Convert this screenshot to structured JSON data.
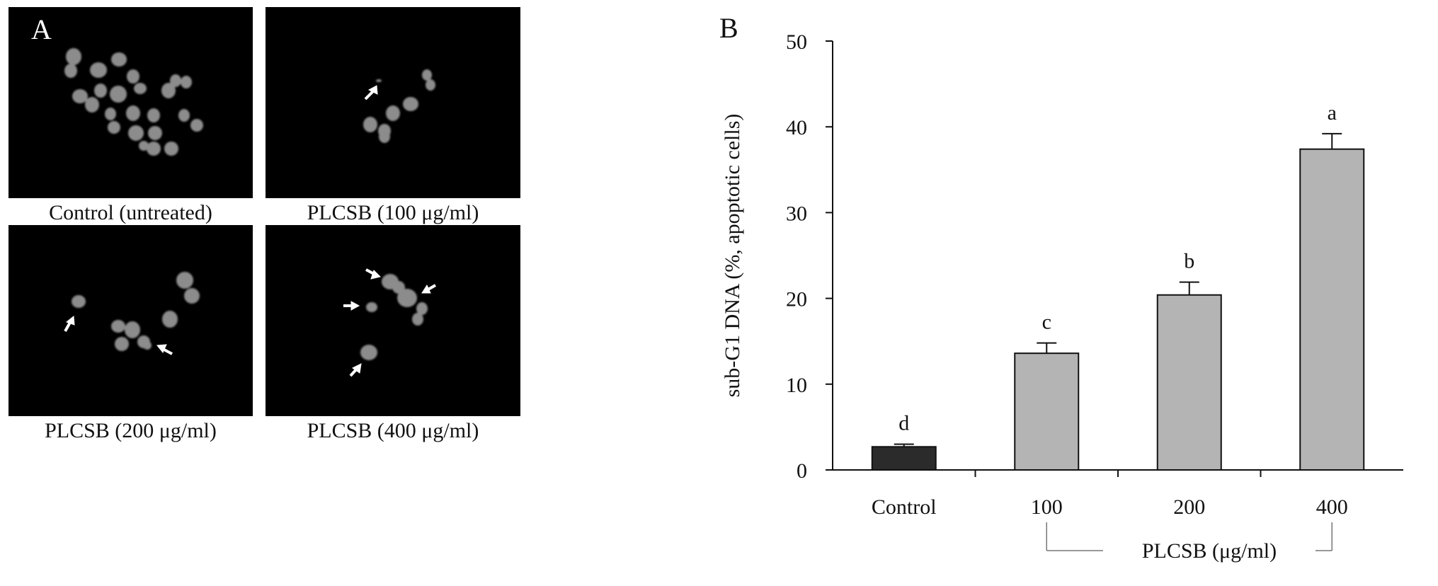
{
  "panel_a": {
    "label": "A",
    "images": [
      {
        "caption": "Control (untreated)"
      },
      {
        "caption": "PLCSB (100 μg/ml)"
      },
      {
        "caption": "PLCSB (200 μg/ml)"
      },
      {
        "caption": "PLCSB (400 μg/ml)"
      }
    ]
  },
  "panel_b": {
    "label": "B"
  },
  "chart_data": {
    "type": "bar",
    "title": "",
    "ylabel": "sub-G1 DNA (%, apoptotic cells)",
    "xlabel": "PLCSB (μg/ml)",
    "categories": [
      "Control",
      "100",
      "200",
      "400"
    ],
    "series": [
      {
        "values": [
          2.7,
          13.6,
          20.4,
          37.4
        ],
        "errors": [
          0.3,
          1.2,
          1.5,
          1.8
        ]
      }
    ],
    "letters": [
      "d",
      "c",
      "b",
      "a"
    ],
    "bar_colors": [
      "#2b2b2b",
      "#b4b4b4",
      "#b4b4b4",
      "#b4b4b4"
    ],
    "ylim": [
      0,
      50
    ],
    "yticks": [
      0,
      10,
      20,
      30,
      40,
      50
    ],
    "grid": false
  }
}
